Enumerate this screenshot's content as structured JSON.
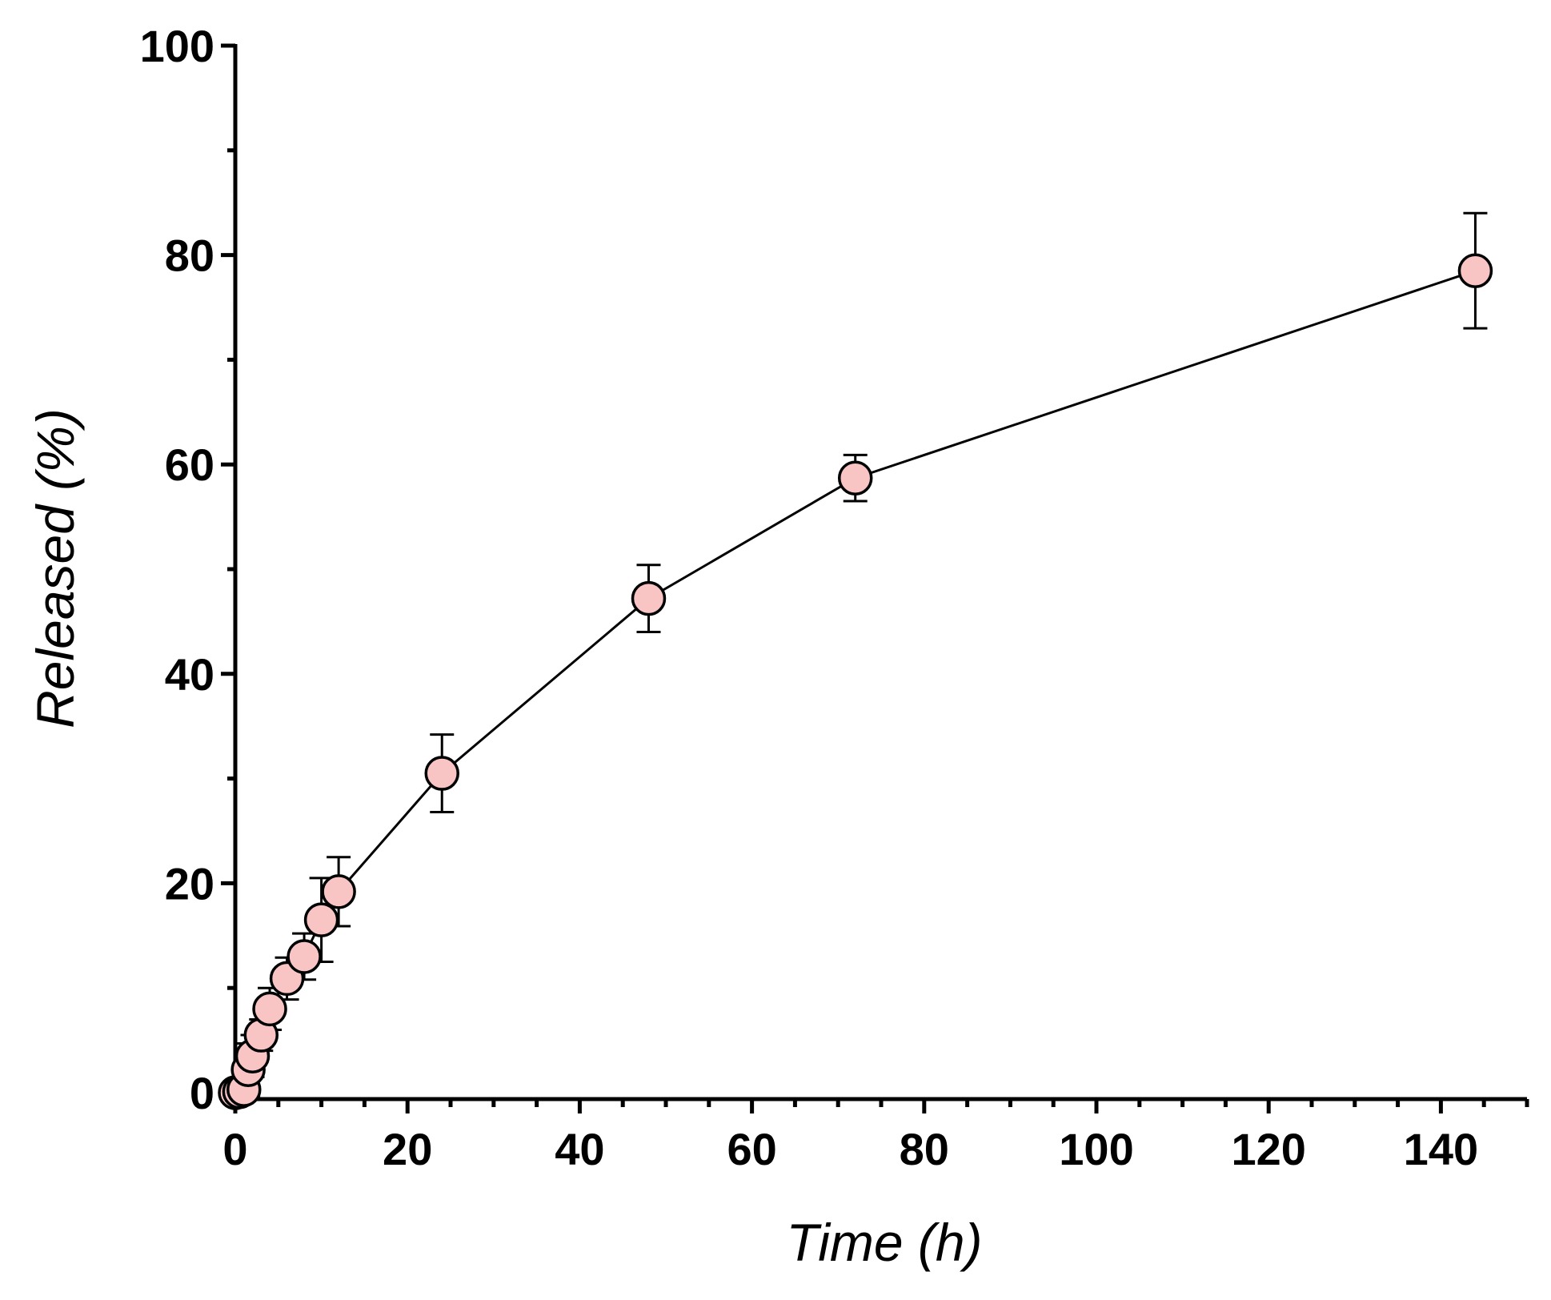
{
  "chart_data": {
    "type": "line",
    "xlabel": "Time (h)",
    "ylabel": "Released (%)",
    "x": [
      0,
      0.5,
      1,
      1.5,
      2,
      3,
      4,
      6,
      8,
      10,
      12,
      24,
      48,
      72,
      144
    ],
    "series": [
      {
        "name": "Released",
        "color": "#f9c4c4",
        "line_color": "#000000",
        "values": [
          0,
          0.1,
          0.3,
          2.2,
          3.5,
          5.5,
          8,
          10.9,
          13,
          16.5,
          19.2,
          30.5,
          47.2,
          58.7,
          78.5
        ],
        "errors": [
          0.3,
          0.3,
          0.5,
          2.5,
          2,
          1.5,
          2,
          2,
          2.2,
          4,
          3.3,
          3.7,
          3.2,
          2.2,
          5.5
        ]
      }
    ],
    "xlim": [
      0,
      150
    ],
    "ylim": [
      0,
      100
    ],
    "xticks": [
      0,
      20,
      40,
      60,
      80,
      100,
      120,
      140
    ],
    "yticks": [
      0,
      20,
      40,
      60,
      80,
      100
    ],
    "xminorticks": [
      5,
      10,
      15,
      25,
      30,
      35,
      45,
      50,
      55,
      65,
      70,
      75,
      85,
      90,
      95,
      105,
      110,
      115,
      125,
      130,
      135,
      145,
      150
    ],
    "yminorticks": [
      10,
      30,
      50,
      70,
      90
    ],
    "grid": false
  }
}
